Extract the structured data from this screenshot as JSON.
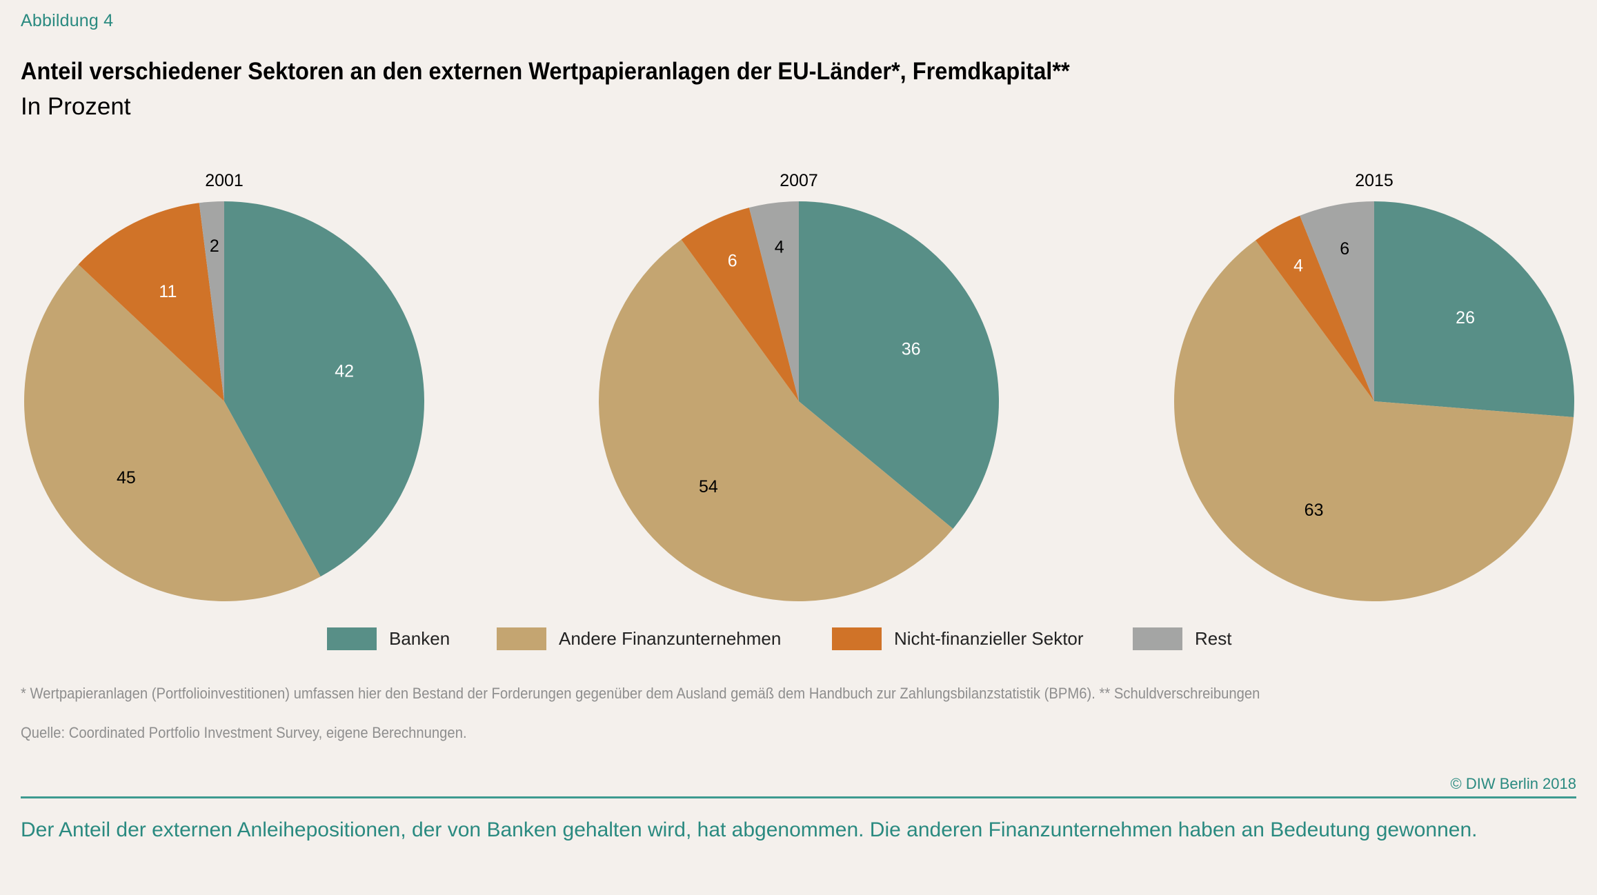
{
  "header": {
    "figure_label": "Abbildung 4",
    "title": "Anteil verschiedener Sektoren an den externen Wertpapieranlagen der EU-Länder*, Fremdkapital**",
    "subtitle": "In Prozent"
  },
  "colors": {
    "Banken": "#588f87",
    "Andere Finanzunternehmen": "#c4a571",
    "Nicht-finanzieller Sektor": "#d07328",
    "Rest": "#a4a5a4",
    "accent": "#2a8a80",
    "background": "#f4f0ec"
  },
  "chart_data": [
    {
      "type": "pie",
      "title": "2001",
      "categories": [
        "Banken",
        "Andere Finanzunternehmen",
        "Nicht-finanzieller Sektor",
        "Rest"
      ],
      "values": [
        42,
        45,
        11,
        2
      ],
      "unit": "%",
      "start": "12 o'clock",
      "direction": "clockwise"
    },
    {
      "type": "pie",
      "title": "2007",
      "categories": [
        "Banken",
        "Andere Finanzunternehmen",
        "Nicht-finanzieller Sektor",
        "Rest"
      ],
      "values": [
        36,
        54,
        6,
        4
      ],
      "unit": "%",
      "start": "12 o'clock",
      "direction": "clockwise"
    },
    {
      "type": "pie",
      "title": "2015",
      "categories": [
        "Banken",
        "Andere Finanzunternehmen",
        "Nicht-finanzieller Sektor",
        "Rest"
      ],
      "values": [
        26,
        63,
        4,
        6
      ],
      "unit": "%",
      "start": "12 o'clock",
      "direction": "clockwise"
    }
  ],
  "legend": {
    "placement": "bottom-center",
    "items": [
      {
        "label": "Banken",
        "color": "#588f87"
      },
      {
        "label": "Andere Finanzunternehmen",
        "color": "#c4a571"
      },
      {
        "label": "Nicht-finanzieller Sektor",
        "color": "#d07328"
      },
      {
        "label": "Rest",
        "color": "#a4a5a4"
      }
    ]
  },
  "notes": {
    "footnote": "* Wertpapieranlagen (Portfolioinvestitionen) umfassen hier den Bestand der Forderungen gegenüber dem Ausland gemäß dem Handbuch zur Zahlungsbilanzstatistik (BPM6). ** Schuldverschreibungen",
    "source": "Quelle: Coordinated Portfolio Investment Survey, eigene Berechnungen."
  },
  "footer": {
    "copyright": "© DIW Berlin 2018",
    "summary": "Der Anteil der externen Anleihepositionen, der von Banken gehalten wird, hat abgenommen. Die anderen Finanzunternehmen haben an Bedeutung gewonnen."
  }
}
